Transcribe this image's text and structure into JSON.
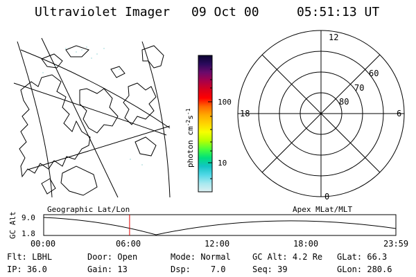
{
  "header": {
    "title": "Ultraviolet Imager",
    "date": "09 Oct 00",
    "time": "05:51:13 UT"
  },
  "colorbar": {
    "label_html": "photon cm<tspan baseline-shift=\"super\" font-size=\"8\">-2</tspan>s<tspan baseline-shift=\"super\" font-size=\"8\">-1</tspan>",
    "label": "photon cm-2s-1",
    "ticks": [
      "100",
      "10"
    ],
    "colors": [
      "#0b0330",
      "#2a0a5c",
      "#6b0a6b",
      "#a8004a",
      "#d8001c",
      "#ff0000",
      "#ff6a00",
      "#ffaa00",
      "#ffd400",
      "#f6ff00",
      "#b8ff00",
      "#4bff3a",
      "#00e07a",
      "#12c4c4",
      "#50d8e6",
      "#a6e8ef",
      "#ddf0f2"
    ]
  },
  "polar": {
    "mlt_labels": {
      "top": "12",
      "bottom": "0",
      "left": "18",
      "right": "6"
    },
    "lat_labels": [
      "60",
      "70",
      "80"
    ]
  },
  "strip": {
    "left_label": "Geographic Lat/Lon",
    "right_label": "Apex MLat/MLT",
    "axis_label": "GC Alt",
    "y_top": "9.0",
    "y_bottom": "1.8",
    "x_ticks": [
      "00:00",
      "06:00",
      "12:00",
      "18:00",
      "23:59"
    ],
    "marker_color": "#e00000",
    "marker_time_fraction": 0.2439
  },
  "info": {
    "filter": {
      "label": "Flt:",
      "value": "LBHL"
    },
    "ip": {
      "label": "IP:",
      "value": "36.0"
    },
    "door": {
      "label": "Door:",
      "value": "Open"
    },
    "gain": {
      "label": "Gain:",
      "value": "13"
    },
    "mode": {
      "label": "Mode:",
      "value": "Normal"
    },
    "dsp": {
      "label": "Dsp:",
      "value": "7.0"
    },
    "gcalt": {
      "label": "GC Alt:",
      "value": "4.2 Re"
    },
    "seq": {
      "label": "Seq:",
      "value": "39"
    },
    "glat": {
      "label": "GLat:",
      "value": "66.3"
    },
    "glon": {
      "label": "GLon:",
      "value": "280.6"
    }
  }
}
